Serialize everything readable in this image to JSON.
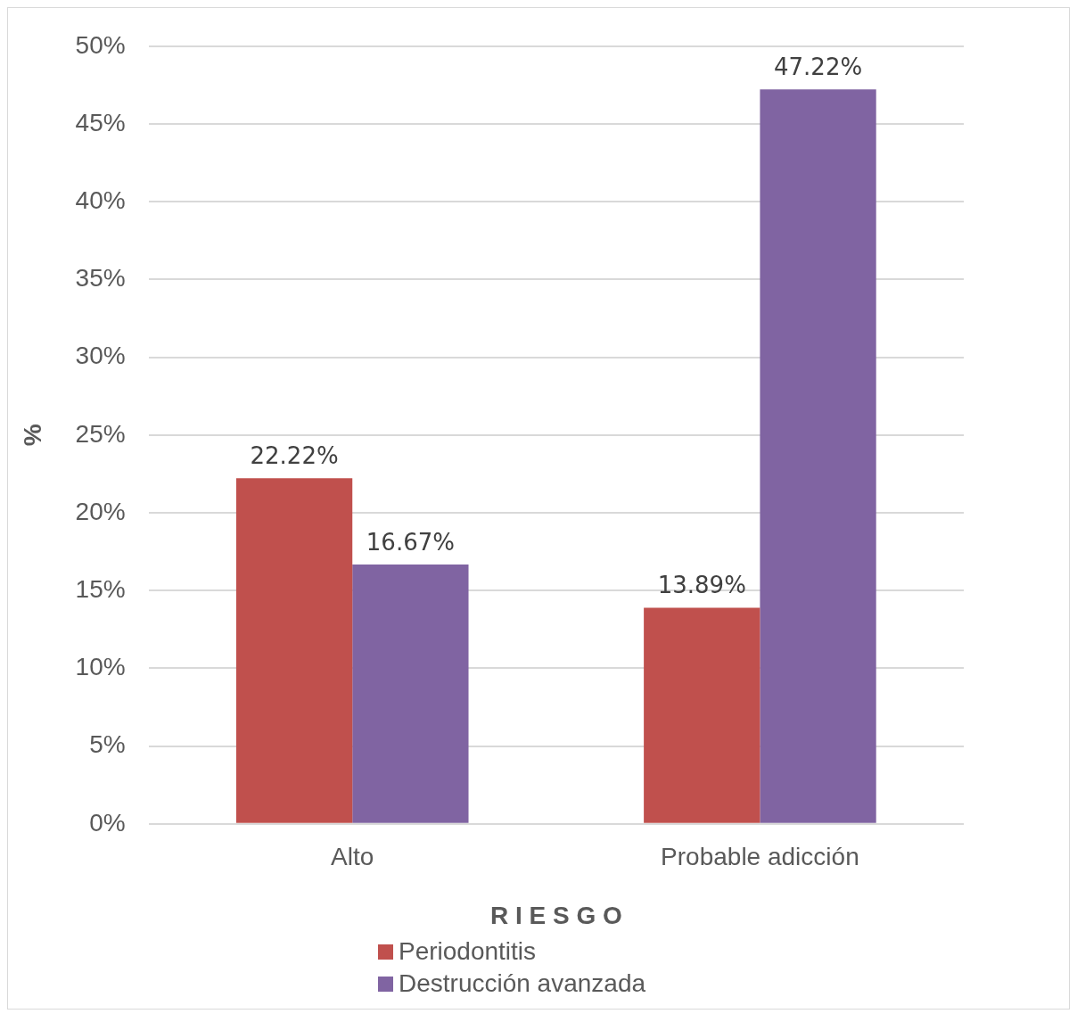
{
  "chart_data": {
    "type": "bar",
    "xlabel": "R I E S G O",
    "ylabel": "%",
    "categories": [
      "Alto",
      "Probable adicción"
    ],
    "series": [
      {
        "name": "Periodontitis",
        "color": "#c0504d",
        "values": [
          22.22,
          13.89
        ],
        "value_labels": [
          "22.22%",
          "13.89%"
        ]
      },
      {
        "name": "Destrucción avanzada",
        "color": "#8064a2",
        "values": [
          16.67,
          47.22
        ],
        "value_labels": [
          "16.67%",
          "47.22%"
        ]
      }
    ],
    "ylim": [
      0,
      50
    ],
    "yticks": [
      {
        "value": 0,
        "label": "0%"
      },
      {
        "value": 5,
        "label": "5%"
      },
      {
        "value": 10,
        "label": "10%"
      },
      {
        "value": 15,
        "label": "15%"
      },
      {
        "value": 20,
        "label": "20%"
      },
      {
        "value": 25,
        "label": "25%"
      },
      {
        "value": 30,
        "label": "30%"
      },
      {
        "value": 35,
        "label": "35%"
      },
      {
        "value": 40,
        "label": "40%"
      },
      {
        "value": 45,
        "label": "45%"
      },
      {
        "value": 50,
        "label": "50%"
      }
    ],
    "grid": "y",
    "legend": "bottom"
  }
}
